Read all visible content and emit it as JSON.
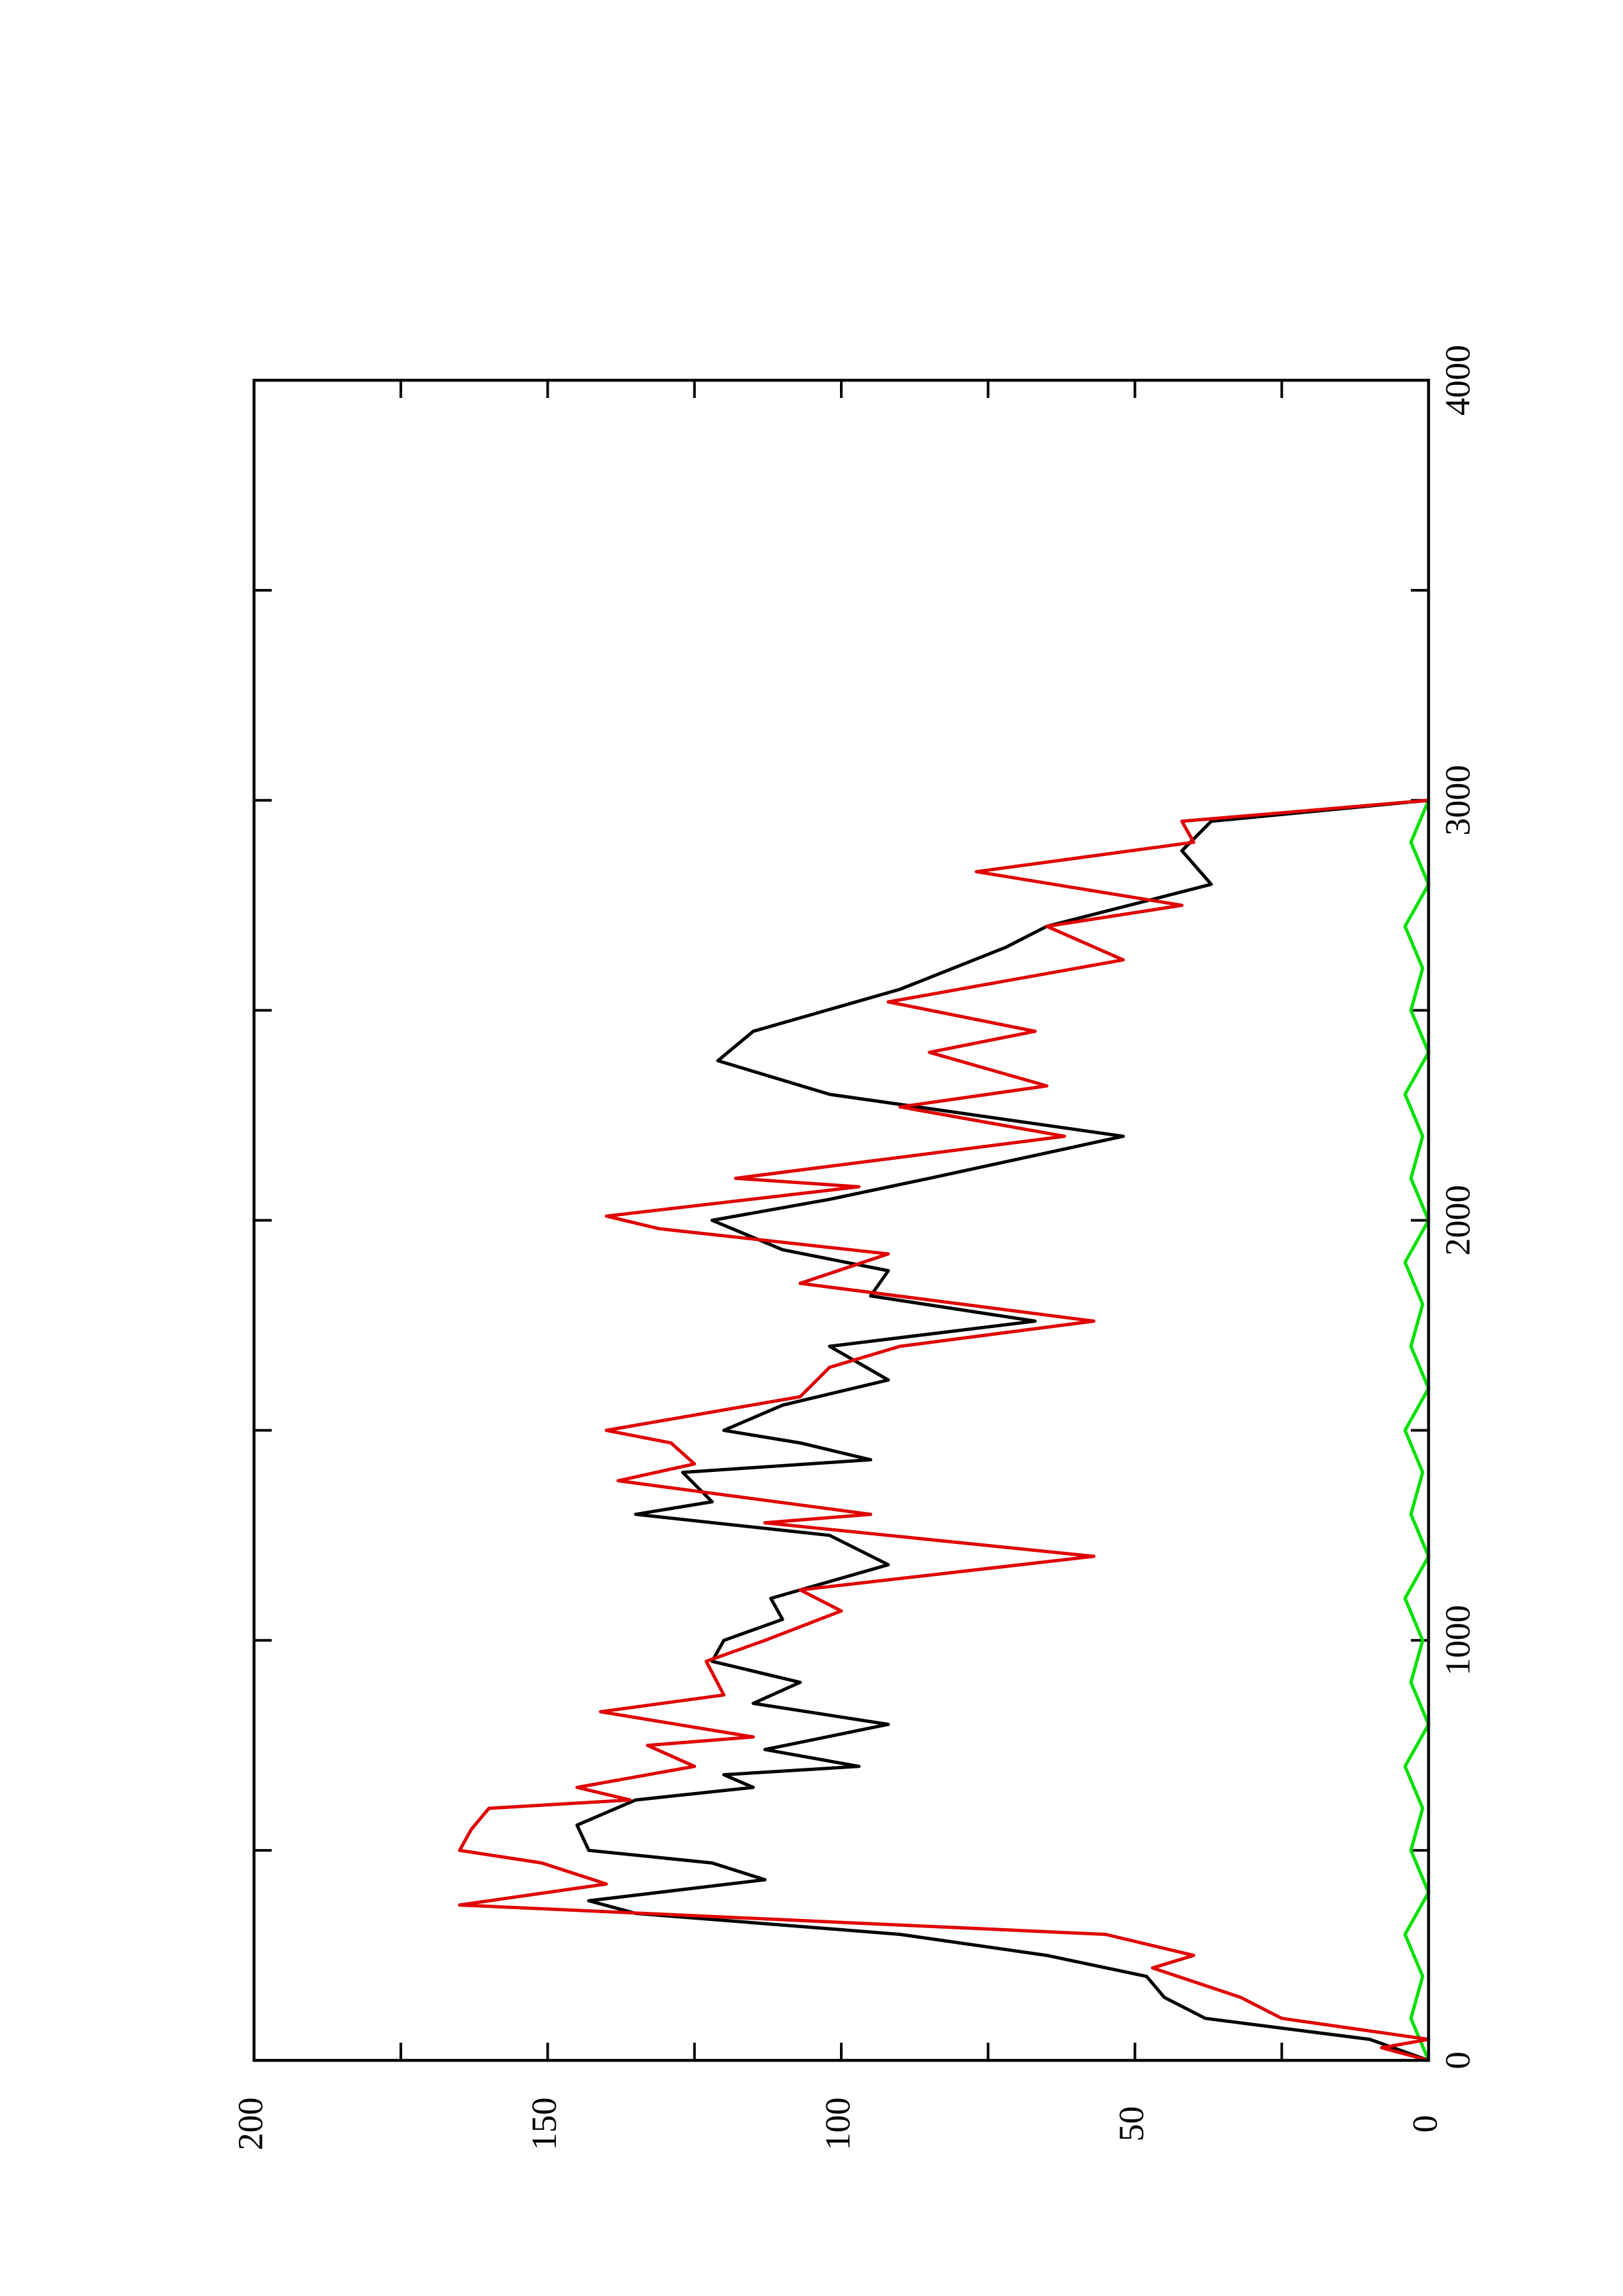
{
  "chart_data": {
    "type": "line",
    "xlim": [
      0,
      4000
    ],
    "xticks": [
      0,
      1000,
      2000,
      3000,
      4000
    ],
    "ylim": [
      0,
      200
    ],
    "yticks": [
      0,
      50,
      100,
      150,
      200
    ],
    "series": [
      {
        "color": "#00e000",
        "x": [
          0,
          100,
          200,
          300,
          400,
          500,
          600,
          700,
          800,
          900,
          1000,
          1100,
          1200,
          1300,
          1400,
          1500,
          1600,
          1700,
          1800,
          1900,
          2000,
          2100,
          2200,
          2300,
          2400,
          2500,
          2600,
          2700,
          2800,
          2900,
          3000
        ],
        "values": [
          0,
          3,
          1,
          4,
          0,
          3,
          1,
          4,
          0,
          3,
          1,
          4,
          0,
          3,
          1,
          4,
          0,
          3,
          1,
          4,
          0,
          3,
          1,
          4,
          0,
          3,
          1,
          4,
          0,
          3,
          0
        ]
      },
      {
        "color": "#000000",
        "x": [
          0,
          50,
          100,
          150,
          200,
          250,
          300,
          350,
          380,
          430,
          470,
          500,
          560,
          620,
          650,
          680,
          700,
          740,
          800,
          850,
          900,
          950,
          1000,
          1050,
          1100,
          1180,
          1250,
          1300,
          1330,
          1400,
          1430,
          1470,
          1500,
          1560,
          1620,
          1700,
          1760,
          1820,
          1880,
          1930,
          2000,
          2050,
          2100,
          2200,
          2300,
          2380,
          2450,
          2550,
          2650,
          2700,
          2800,
          2880,
          2950,
          3000
        ],
        "values": [
          0,
          10,
          38,
          45,
          48,
          65,
          90,
          135,
          143,
          113,
          122,
          143,
          145,
          135,
          115,
          120,
          97,
          113,
          92,
          115,
          107,
          122,
          120,
          110,
          112,
          92,
          102,
          135,
          122,
          127,
          95,
          107,
          120,
          110,
          92,
          102,
          67,
          95,
          92,
          110,
          122,
          102,
          85,
          52,
          102,
          121,
          115,
          90,
          72,
          65,
          37,
          42,
          37,
          0
        ]
      },
      {
        "color": "#e00000",
        "x": [
          0,
          30,
          50,
          100,
          150,
          220,
          250,
          300,
          370,
          420,
          470,
          500,
          550,
          600,
          620,
          650,
          700,
          750,
          770,
          830,
          870,
          950,
          1000,
          1070,
          1120,
          1200,
          1280,
          1300,
          1380,
          1420,
          1470,
          1500,
          1580,
          1650,
          1700,
          1760,
          1850,
          1920,
          1980,
          2010,
          2080,
          2100,
          2200,
          2270,
          2320,
          2400,
          2450,
          2520,
          2620,
          2700,
          2750,
          2830,
          2900,
          2950,
          3000
        ],
        "values": [
          0,
          8,
          0,
          25,
          32,
          47,
          40,
          55,
          165,
          140,
          151,
          165,
          163,
          160,
          136,
          145,
          125,
          133,
          115,
          141,
          120,
          123,
          113,
          100,
          107,
          57,
          113,
          95,
          138,
          125,
          129,
          140,
          107,
          102,
          90,
          57,
          107,
          92,
          131,
          140,
          97,
          118,
          62,
          90,
          65,
          85,
          67,
          92,
          52,
          65,
          42,
          77,
          40,
          42,
          0
        ]
      }
    ]
  }
}
